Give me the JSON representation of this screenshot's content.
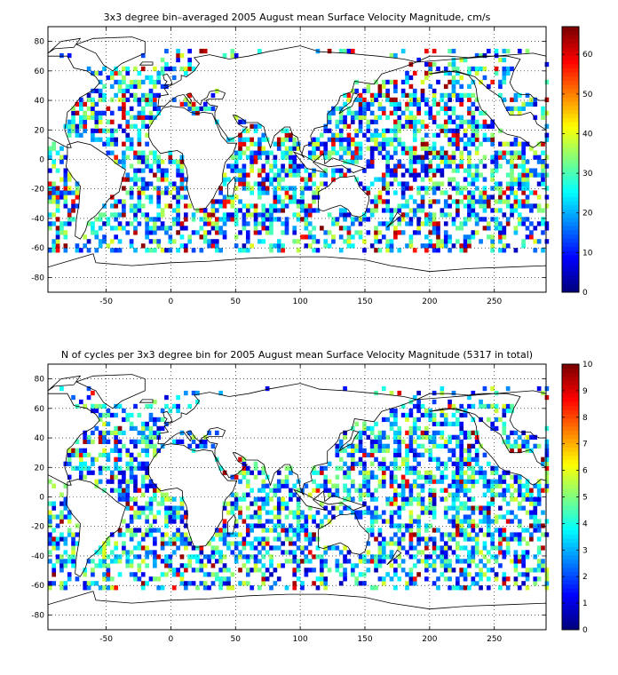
{
  "panels": [
    {
      "title": "3x3 degree bin–averaged 2005 August mean Surface Velocity Magnitude, cm/s",
      "x_ticks": [
        -50,
        0,
        50,
        100,
        150,
        200,
        250
      ],
      "y_ticks": [
        80,
        60,
        40,
        20,
        0,
        -20,
        -40,
        -60,
        -80
      ],
      "x_range": [
        -95,
        290
      ],
      "y_range": [
        -90,
        90
      ],
      "colorbar": {
        "min": 0,
        "max": 67,
        "ticks": [
          0,
          10,
          20,
          30,
          40,
          50,
          60
        ]
      },
      "high_fraction": 0.12,
      "seed": 11
    },
    {
      "title": "N of cycles per 3x3 degree bin for 2005 August mean Surface Velocity Magnitude (5317 in total)",
      "x_ticks": [
        -50,
        0,
        50,
        100,
        150,
        200,
        250
      ],
      "y_ticks": [
        80,
        60,
        40,
        20,
        0,
        -20,
        -40,
        -60,
        -80
      ],
      "x_range": [
        -95,
        290
      ],
      "y_range": [
        -90,
        90
      ],
      "colorbar": {
        "min": 0,
        "max": 10,
        "ticks": [
          0,
          1,
          2,
          3,
          4,
          5,
          6,
          7,
          8,
          9,
          10
        ]
      },
      "high_fraction": 0.06,
      "seed": 29
    }
  ],
  "colors": {
    "axis": "#000000",
    "grid": "#000000",
    "coast": "#000000"
  }
}
